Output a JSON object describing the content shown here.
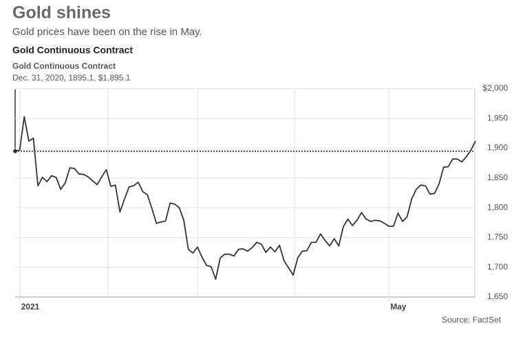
{
  "chart_data": {
    "type": "line",
    "title": "Gold shines",
    "subtitle": "Gold prices have been on the rise in May.",
    "chart_heading": "Gold Continuous Contract",
    "series_label": "Gold Continuous Contract",
    "annotation": "Dec. 31, 2020, 1895.1, $1,895.1",
    "reference_value": 1895.1,
    "source": "Source: FactSet",
    "color": "#333333",
    "grid": true,
    "categories": [
      null,
      "2021",
      null,
      null,
      null,
      null,
      null,
      null,
      null,
      null,
      null,
      null,
      null,
      null,
      null,
      null,
      null,
      null,
      null,
      null,
      null,
      null,
      null,
      null,
      null,
      null,
      null,
      null,
      null,
      null,
      null,
      null,
      null,
      null,
      null,
      null,
      null,
      null,
      null,
      null,
      null,
      null,
      null,
      null,
      null,
      null,
      null,
      null,
      null,
      null,
      null,
      null,
      null,
      null,
      null,
      null,
      null,
      null,
      null,
      null,
      null,
      null,
      null,
      null,
      null,
      null,
      null,
      null,
      null,
      null,
      null,
      null,
      null,
      null,
      null,
      null,
      null,
      null,
      null,
      null,
      null,
      null,
      "May",
      null,
      null,
      null,
      null,
      null,
      null,
      null,
      null,
      null,
      null,
      null,
      null,
      null,
      null,
      null,
      null,
      null,
      null,
      null
    ],
    "values": [
      1895.1,
      1897,
      1953,
      1912,
      1917,
      1837,
      1851,
      1844,
      1854,
      1851,
      1831,
      1842,
      1867,
      1866,
      1857,
      1856,
      1852,
      1845,
      1839,
      1852,
      1864,
      1836,
      1838,
      1793,
      1815,
      1835,
      1837,
      1843,
      1827,
      1822,
      1799,
      1774,
      1776,
      1778,
      1808,
      1806,
      1800,
      1779,
      1730,
      1724,
      1734,
      1717,
      1703,
      1701,
      1680,
      1716,
      1722,
      1722,
      1719,
      1730,
      1731,
      1727,
      1733,
      1742,
      1739,
      1725,
      1734,
      1726,
      1737,
      1711,
      1699,
      1687,
      1716,
      1727,
      1728,
      1742,
      1742,
      1756,
      1745,
      1736,
      1748,
      1736,
      1768,
      1781,
      1770,
      1779,
      1792,
      1781,
      1777,
      1779,
      1778,
      1774,
      1769,
      1769,
      1791,
      1777,
      1785,
      1815,
      1831,
      1838,
      1837,
      1823,
      1824,
      1840,
      1868,
      1869,
      1882,
      1882,
      1877,
      1886,
      1897,
      1912
    ],
    "ylim": [
      1650,
      2000
    ],
    "yticks": [
      {
        "value": 2000,
        "label": "$2,000"
      },
      {
        "value": 1950,
        "label": "1,950"
      },
      {
        "value": 1900,
        "label": "1,900"
      },
      {
        "value": 1850,
        "label": "1,850"
      },
      {
        "value": 1800,
        "label": "1,800"
      },
      {
        "value": 1750,
        "label": "1,750"
      },
      {
        "value": 1700,
        "label": "1,700"
      },
      {
        "value": 1650,
        "label": "1,650"
      }
    ]
  }
}
